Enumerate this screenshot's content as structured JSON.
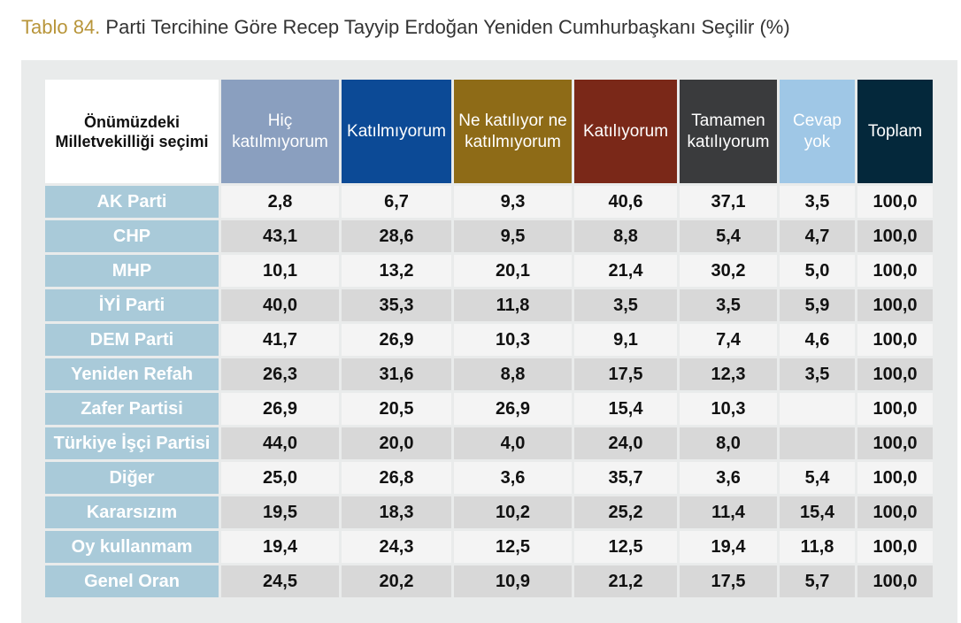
{
  "title": {
    "prefix": "Tablo 84.",
    "text": "Parti Tercihine Göre Recep Tayyip Erdoğan Yeniden Cumhurbaşkanı Seçilir (%)"
  },
  "table": {
    "corner_label": "Önümüzdeki Milletvekilliği seçimi",
    "columns": [
      {
        "label": "Hiç katılmıyorum",
        "color": "#8a9fbf"
      },
      {
        "label": "Katılmıyorum",
        "color": "#0c4a96"
      },
      {
        "label": "Ne katılıyor ne katılmıyorum",
        "color": "#8e6b17"
      },
      {
        "label": "Katılıyorum",
        "color": "#7a2818"
      },
      {
        "label": "Tamamen katılıyorum",
        "color": "#3a3b3d"
      },
      {
        "label": "Cevap yok",
        "color": "#9fc7e6"
      },
      {
        "label": "Toplam",
        "color": "#04283b"
      }
    ],
    "rows": [
      {
        "label": "AK Parti",
        "values": [
          "2,8",
          "6,7",
          "9,3",
          "40,6",
          "37,1",
          "3,5",
          "100,0"
        ]
      },
      {
        "label": "CHP",
        "values": [
          "43,1",
          "28,6",
          "9,5",
          "8,8",
          "5,4",
          "4,7",
          "100,0"
        ]
      },
      {
        "label": "MHP",
        "values": [
          "10,1",
          "13,2",
          "20,1",
          "21,4",
          "30,2",
          "5,0",
          "100,0"
        ]
      },
      {
        "label": "İYİ Parti",
        "values": [
          "40,0",
          "35,3",
          "11,8",
          "3,5",
          "3,5",
          "5,9",
          "100,0"
        ]
      },
      {
        "label": "DEM Parti",
        "values": [
          "41,7",
          "26,9",
          "10,3",
          "9,1",
          "7,4",
          "4,6",
          "100,0"
        ]
      },
      {
        "label": "Yeniden Refah",
        "values": [
          "26,3",
          "31,6",
          "8,8",
          "17,5",
          "12,3",
          "3,5",
          "100,0"
        ]
      },
      {
        "label": "Zafer Partisi",
        "values": [
          "26,9",
          "20,5",
          "26,9",
          "15,4",
          "10,3",
          "",
          "100,0"
        ]
      },
      {
        "label": "Türkiye İşçi Partisi",
        "values": [
          "44,0",
          "20,0",
          "4,0",
          "24,0",
          "8,0",
          "",
          "100,0"
        ]
      },
      {
        "label": "Diğer",
        "values": [
          "25,0",
          "26,8",
          "3,6",
          "35,7",
          "3,6",
          "5,4",
          "100,0"
        ]
      },
      {
        "label": "Kararsızım",
        "values": [
          "19,5",
          "18,3",
          "10,2",
          "25,2",
          "11,4",
          "15,4",
          "100,0"
        ]
      },
      {
        "label": "Oy kullanmam",
        "values": [
          "19,4",
          "24,3",
          "12,5",
          "12,5",
          "19,4",
          "11,8",
          "100,0"
        ]
      },
      {
        "label": "Genel Oran",
        "values": [
          "24,5",
          "20,2",
          "10,9",
          "21,2",
          "17,5",
          "5,7",
          "100,0"
        ]
      }
    ]
  }
}
